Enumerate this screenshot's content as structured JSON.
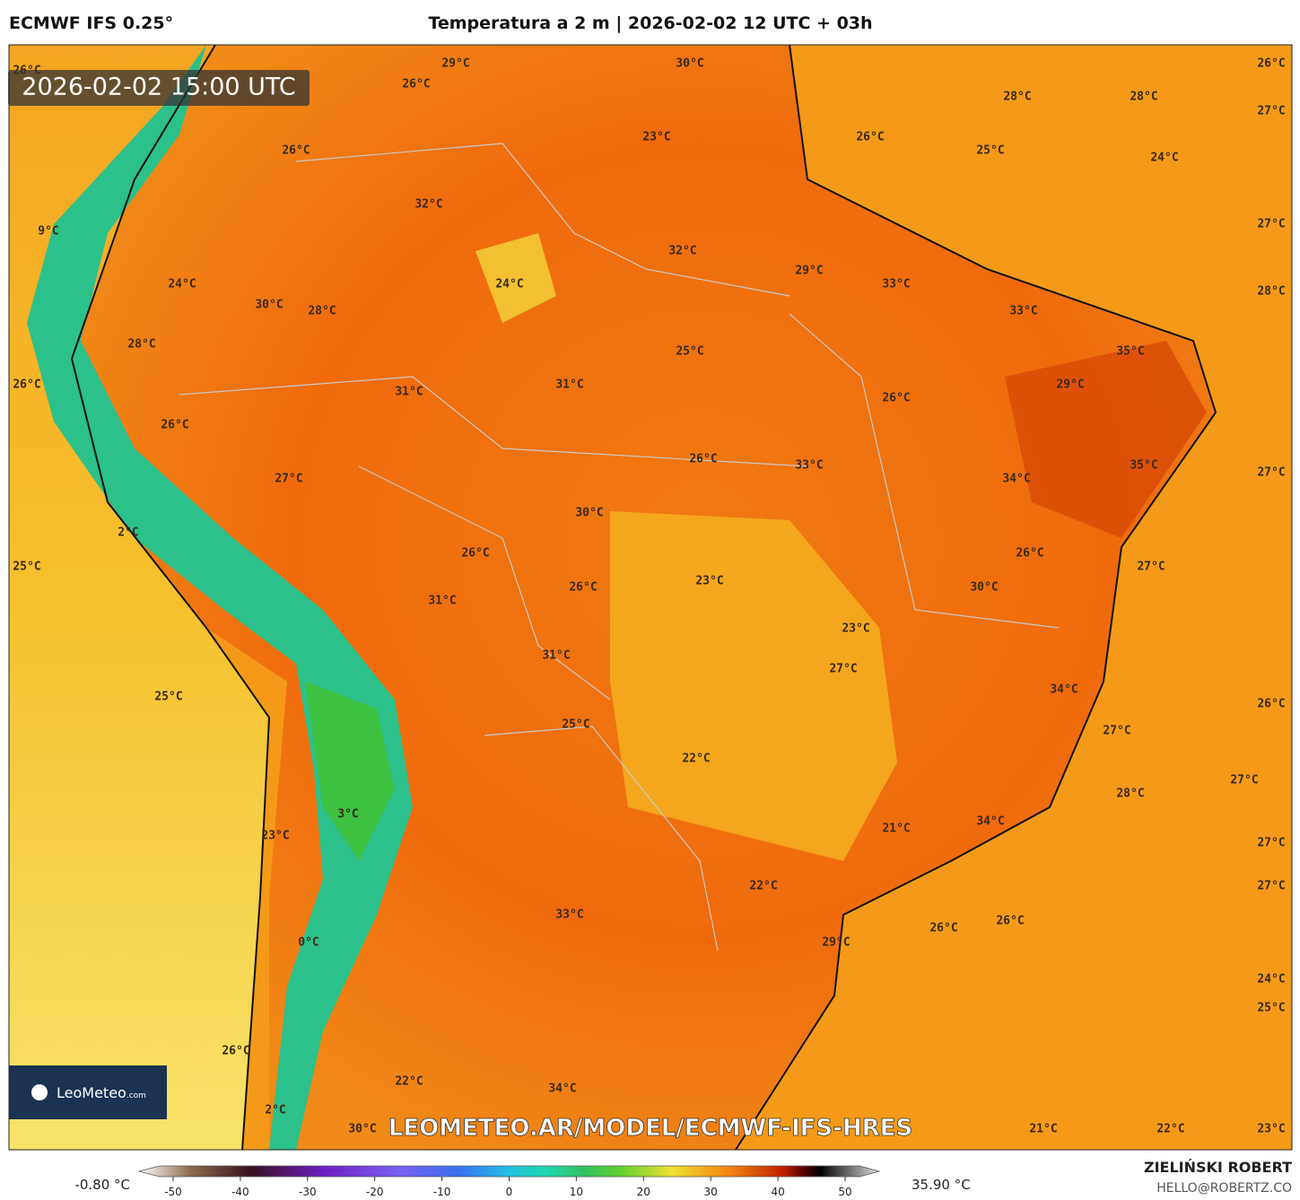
{
  "header": {
    "left": "ECMWF IFS 0.25°",
    "title": "Temperatura a 2 m | 2026-02-02 12 UTC + 03h"
  },
  "map": {
    "valid_time": "2026-02-02 15:00 UTC",
    "labels": [
      "29°C",
      "30°C",
      "26°C",
      "26°C",
      "28°C",
      "28°C",
      "27°C",
      "23°C",
      "26°C",
      "26°C",
      "25°C",
      "24°C",
      "32°C",
      "27°C",
      "9°C",
      "32°C",
      "29°C",
      "24°C",
      "24°C",
      "33°C",
      "28°C",
      "30°C",
      "28°C",
      "33°C",
      "28°C",
      "25°C",
      "35°C",
      "26°C",
      "31°C",
      "31°C",
      "29°C",
      "26°C",
      "26°C",
      "26°C",
      "33°C",
      "35°C",
      "27°C",
      "27°C",
      "34°C",
      "30°C",
      "2°C",
      "26°C",
      "26°C",
      "25°C",
      "27°C",
      "23°C",
      "26°C",
      "30°C",
      "31°C",
      "23°C",
      "31°C",
      "27°C",
      "34°C",
      "25°C",
      "26°C",
      "25°C",
      "27°C",
      "22°C",
      "27°C",
      "28°C",
      "3°C",
      "34°C",
      "21°C",
      "23°C",
      "27°C",
      "22°C",
      "27°C",
      "33°C",
      "26°C",
      "26°C",
      "0°C",
      "29°C",
      "24°C",
      "25°C",
      "26°C",
      "22°C",
      "34°C",
      "2°C",
      "30°C",
      "21°C",
      "22°C",
      "23°C",
      "26°C"
    ],
    "watermark": "LEOMETEO.AR/MODEL/ECMWF-IFS-HRES",
    "logo": {
      "brand": "LeoMeteo",
      "suffix": ".com"
    }
  },
  "colorbar": {
    "min_label": "-0.80 °C",
    "max_label": "35.90 °C",
    "ticks": [
      -50,
      -40,
      -30,
      -20,
      -10,
      0,
      10,
      20,
      30,
      40,
      50
    ]
  },
  "footer": {
    "author": "ZIELIŃSKI ROBERT",
    "email": "HELLO@ROBERTZ.CO"
  }
}
